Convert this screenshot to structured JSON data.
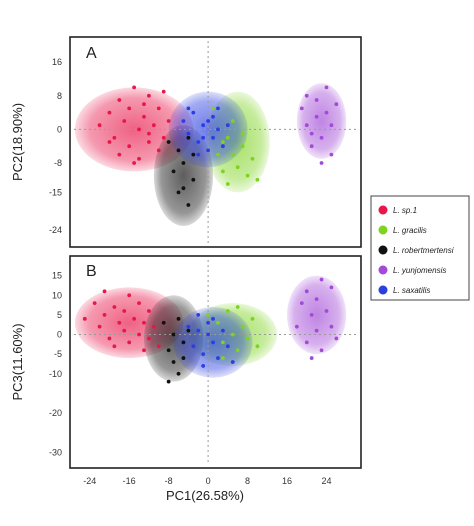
{
  "figure": {
    "xlabel": "PC1(26.58%)",
    "x_ticks": [
      -24,
      -16,
      -8,
      0,
      8,
      16,
      24
    ],
    "xlim": [
      -28,
      31
    ]
  },
  "legend": [
    {
      "label": "L. sp.1",
      "color": "#e8174a"
    },
    {
      "label": "L. gracilis",
      "color": "#7ed321"
    },
    {
      "label": "L. robertmertensi",
      "color": "#111111"
    },
    {
      "label": "L. yunjomensis",
      "color": "#a24bd6"
    },
    {
      "label": "L. saxatilis",
      "color": "#2a3fe0"
    }
  ],
  "chart_data": [
    {
      "type": "scatter",
      "panel": "A",
      "xlabel": "PC1(26.58%)",
      "ylabel": "PC2(18.90%)",
      "xlim": [
        -28,
        31
      ],
      "ylim": [
        -28,
        22
      ],
      "y_ticks": [
        16,
        8,
        0,
        -8,
        -15,
        -24
      ],
      "ellipses": [
        {
          "series": "L. sp.1",
          "color": "#e8174a",
          "cx": -15,
          "cy": 0,
          "rx": 12,
          "ry": 10
        },
        {
          "series": "L. robertmertensi",
          "color": "#111111",
          "cx": -5,
          "cy": -11,
          "rx": 6,
          "ry": 12
        },
        {
          "series": "L. gracilis",
          "color": "#7ed321",
          "cx": 6,
          "cy": -3,
          "rx": 6.5,
          "ry": 12
        },
        {
          "series": "L. saxatilis",
          "color": "#2a3fe0",
          "cx": 0,
          "cy": 0,
          "rx": 8,
          "ry": 9
        },
        {
          "series": "L. yunjomensis",
          "color": "#a24bd6",
          "cx": 23,
          "cy": 2,
          "rx": 5,
          "ry": 9
        }
      ],
      "series": [
        {
          "name": "L. sp.1",
          "color": "#e8174a",
          "points": [
            [
              -22,
              1
            ],
            [
              -20,
              4
            ],
            [
              -19,
              -2
            ],
            [
              -18,
              7
            ],
            [
              -17,
              2
            ],
            [
              -16,
              -4
            ],
            [
              -16,
              5
            ],
            [
              -15,
              10
            ],
            [
              -14,
              0
            ],
            [
              -14,
              -7
            ],
            [
              -13,
              6
            ],
            [
              -13,
              3
            ],
            [
              -12,
              -3
            ],
            [
              -12,
              8
            ],
            [
              -11,
              1
            ],
            [
              -10,
              -5
            ],
            [
              -10,
              5
            ],
            [
              -9,
              9
            ],
            [
              -8,
              2
            ],
            [
              -18,
              -6
            ],
            [
              -20,
              -3
            ],
            [
              -15,
              -8
            ],
            [
              -12,
              -1
            ],
            [
              -9,
              -2
            ]
          ]
        },
        {
          "name": "L. robertmertensi",
          "color": "#111111",
          "points": [
            [
              -8,
              -3
            ],
            [
              -7,
              -10
            ],
            [
              -6,
              -5
            ],
            [
              -5,
              -14
            ],
            [
              -5,
              -8
            ],
            [
              -4,
              -18
            ],
            [
              -4,
              -2
            ],
            [
              -3,
              -12
            ],
            [
              -6,
              -15
            ],
            [
              -3,
              -6
            ]
          ]
        },
        {
          "name": "L. gracilis",
          "color": "#7ed321",
          "points": [
            [
              1,
              5
            ],
            [
              2,
              -6
            ],
            [
              3,
              -10
            ],
            [
              4,
              -2
            ],
            [
              4,
              -13
            ],
            [
              5,
              -6
            ],
            [
              6,
              -9
            ],
            [
              7,
              -4
            ],
            [
              8,
              -11
            ],
            [
              9,
              -7
            ],
            [
              10,
              -12
            ],
            [
              5,
              2
            ],
            [
              7,
              -1
            ],
            [
              3,
              -3
            ]
          ]
        },
        {
          "name": "L. saxatilis",
          "color": "#2a3fe0",
          "points": [
            [
              -5,
              2
            ],
            [
              -4,
              -1
            ],
            [
              -3,
              4
            ],
            [
              -2,
              -3
            ],
            [
              -1,
              1
            ],
            [
              0,
              -5
            ],
            [
              1,
              3
            ],
            [
              1,
              -2
            ],
            [
              2,
              0
            ],
            [
              3,
              -4
            ],
            [
              4,
              1
            ],
            [
              -4,
              5
            ],
            [
              -2,
              -6
            ],
            [
              0,
              2
            ],
            [
              2,
              5
            ],
            [
              -1,
              -2
            ]
          ]
        },
        {
          "name": "L. yunjomensis",
          "color": "#a24bd6",
          "points": [
            [
              19,
              5
            ],
            [
              20,
              1
            ],
            [
              20,
              8
            ],
            [
              21,
              -4
            ],
            [
              22,
              3
            ],
            [
              22,
              7
            ],
            [
              23,
              -2
            ],
            [
              24,
              4
            ],
            [
              24,
              10
            ],
            [
              25,
              -6
            ],
            [
              25,
              1
            ],
            [
              26,
              6
            ],
            [
              23,
              -8
            ],
            [
              21,
              -1
            ]
          ]
        }
      ]
    },
    {
      "type": "scatter",
      "panel": "B",
      "xlabel": "PC1(26.58%)",
      "ylabel": "PC3(11.60%)",
      "xlim": [
        -28,
        31
      ],
      "ylim": [
        -34,
        20
      ],
      "y_ticks": [
        15,
        10,
        5,
        0,
        -5,
        -10,
        -20,
        -30
      ],
      "ellipses": [
        {
          "series": "L. sp.1",
          "color": "#e8174a",
          "cx": -16,
          "cy": 3,
          "rx": 11,
          "ry": 9
        },
        {
          "series": "L. gracilis",
          "color": "#7ed321",
          "cx": 5,
          "cy": 0,
          "rx": 9,
          "ry": 8
        },
        {
          "series": "L. robertmertensi",
          "color": "#111111",
          "cx": -7,
          "cy": -1,
          "rx": 6,
          "ry": 11
        },
        {
          "series": "L. saxatilis",
          "color": "#2a3fe0",
          "cx": 1,
          "cy": -2,
          "rx": 8,
          "ry": 9
        },
        {
          "series": "L. yunjomensis",
          "color": "#a24bd6",
          "cx": 22,
          "cy": 5,
          "rx": 6,
          "ry": 10
        }
      ],
      "series": [
        {
          "name": "L. sp.1",
          "color": "#e8174a",
          "points": [
            [
              -25,
              4
            ],
            [
              -23,
              8
            ],
            [
              -22,
              2
            ],
            [
              -21,
              5
            ],
            [
              -20,
              -1
            ],
            [
              -19,
              7
            ],
            [
              -18,
              3
            ],
            [
              -17,
              1
            ],
            [
              -17,
              6
            ],
            [
              -16,
              -2
            ],
            [
              -15,
              4
            ],
            [
              -14,
              8
            ],
            [
              -14,
              0
            ],
            [
              -13,
              3
            ],
            [
              -12,
              -1
            ],
            [
              -12,
              6
            ],
            [
              -11,
              2
            ],
            [
              -10,
              -3
            ],
            [
              -21,
              11
            ],
            [
              -19,
              -3
            ],
            [
              -16,
              10
            ],
            [
              -13,
              -4
            ]
          ]
        },
        {
          "name": "L. gracilis",
          "color": "#7ed321",
          "points": [
            [
              0,
              5
            ],
            [
              2,
              3
            ],
            [
              3,
              -2
            ],
            [
              4,
              6
            ],
            [
              5,
              0
            ],
            [
              6,
              -4
            ],
            [
              7,
              2
            ],
            [
              8,
              -1
            ],
            [
              9,
              4
            ],
            [
              10,
              -3
            ],
            [
              6,
              7
            ],
            [
              3,
              -6
            ]
          ]
        },
        {
          "name": "L. robertmertensi",
          "color": "#111111",
          "points": [
            [
              -9,
              3
            ],
            [
              -8,
              -4
            ],
            [
              -7,
              0
            ],
            [
              -7,
              -7
            ],
            [
              -6,
              4
            ],
            [
              -6,
              -10
            ],
            [
              -5,
              -2
            ],
            [
              -4,
              1
            ],
            [
              -8,
              -12
            ],
            [
              -5,
              -6
            ]
          ]
        },
        {
          "name": "L. saxatilis",
          "color": "#2a3fe0",
          "points": [
            [
              -4,
              2
            ],
            [
              -3,
              -3
            ],
            [
              -2,
              1
            ],
            [
              -1,
              -5
            ],
            [
              0,
              0
            ],
            [
              0,
              3
            ],
            [
              1,
              -2
            ],
            [
              2,
              -6
            ],
            [
              3,
              1
            ],
            [
              4,
              -3
            ],
            [
              5,
              -7
            ],
            [
              -2,
              5
            ],
            [
              1,
              4
            ],
            [
              -1,
              -8
            ]
          ]
        },
        {
          "name": "L. yunjomensis",
          "color": "#a24bd6",
          "points": [
            [
              18,
              2
            ],
            [
              19,
              8
            ],
            [
              20,
              -2
            ],
            [
              20,
              11
            ],
            [
              21,
              5
            ],
            [
              22,
              1
            ],
            [
              22,
              9
            ],
            [
              23,
              -4
            ],
            [
              24,
              6
            ],
            [
              25,
              2
            ],
            [
              25,
              12
            ],
            [
              26,
              -1
            ],
            [
              23,
              14
            ],
            [
              21,
              -6
            ]
          ]
        }
      ]
    }
  ]
}
